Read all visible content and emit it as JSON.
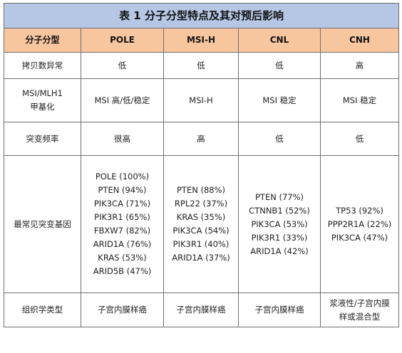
{
  "title": "表 1  分子分型特点及其对预后影响",
  "headers": [
    "分子分型",
    "POLE",
    "MSI-H",
    "CNL",
    "CNH"
  ],
  "rows": [
    {
      "label": "拷贝数异常",
      "values": [
        "低",
        "低",
        "低",
        "高"
      ]
    },
    {
      "label_lines": [
        "MSI/MLH1",
        "甲基化"
      ],
      "values": [
        "MSI 高/低/稳定",
        "MSI-H",
        "MSI 稳定",
        "MSI 稳定"
      ]
    },
    {
      "label": "突变频率",
      "values": [
        "很高",
        "高",
        "低",
        "低"
      ]
    },
    {
      "label": "最常见突变基因",
      "genes": [
        [
          "POLE (100%)",
          "PTEN (94%)",
          "PIK3CA (71%)",
          "PIK3R1 (65%)",
          "FBXW7 (82%)",
          "ARID1A (76%)",
          "KRAS (53%)",
          "ARID5B (47%)"
        ],
        [
          "PTEN (88%)",
          "RPL22 (37%)",
          "KRAS (35%)",
          "PIK3CA (54%)",
          "PIK3R1 (40%)",
          "ARID1A (37%)"
        ],
        [
          "PTEN (77%)",
          "CTNNB1 (52%)",
          "PIK3CA (53%)",
          "PIK3R1 (33%)",
          "ARID1A (42%)"
        ],
        [
          "TP53 (92%)",
          "PPP2R1A (22%)",
          "PIK3CA (47%)"
        ]
      ]
    },
    {
      "label": "组织学类型",
      "values": [
        "子宫内膜样癌",
        "子宫内膜样癌",
        "子宫内膜样癌"
      ],
      "last_lines": [
        "浆液性/子宫内膜",
        "样或混合型"
      ]
    }
  ],
  "colors": {
    "title_bg": "#b6c7e6",
    "header_bg": "#f7c59e",
    "border": "#6f6f6f"
  }
}
